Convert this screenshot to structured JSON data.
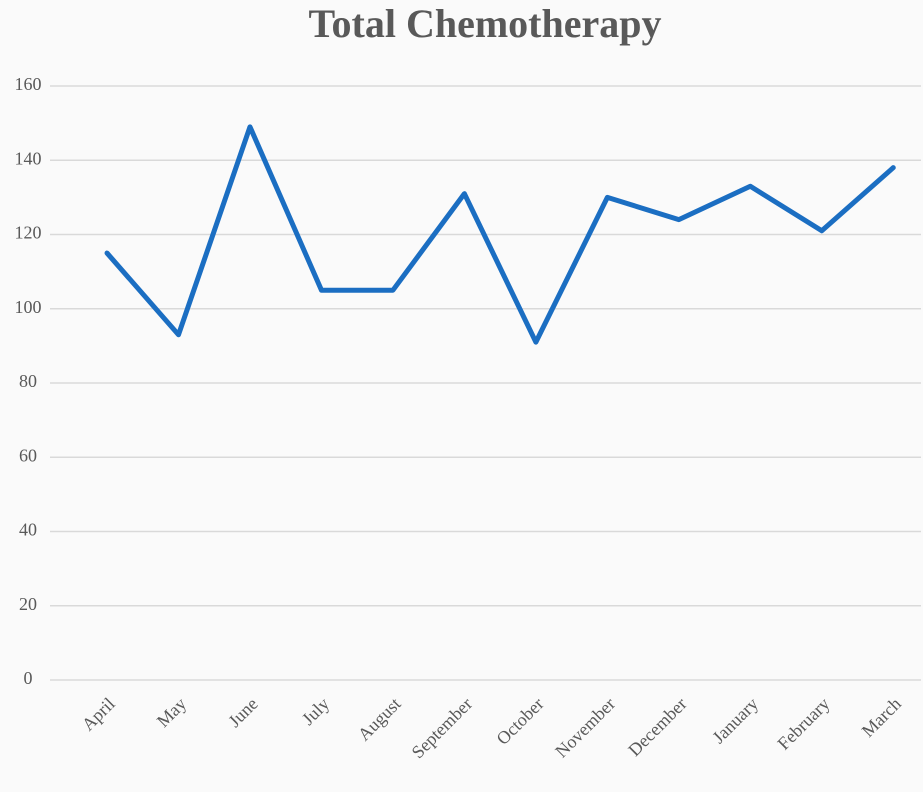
{
  "chart_data": {
    "type": "line",
    "title": "Total Chemotherapy",
    "categories": [
      "April",
      "May",
      "June",
      "July",
      "August",
      "September",
      "October",
      "November",
      "December",
      "January",
      "February",
      "March"
    ],
    "series": [
      {
        "name": "Total Chemotherapy",
        "color": "#1b6ec2",
        "values": [
          115,
          93,
          149,
          105,
          105,
          131,
          91,
          130,
          124,
          133,
          121,
          138
        ]
      }
    ],
    "ylim": [
      0,
      160
    ],
    "yticks": [
      0,
      20,
      40,
      60,
      80,
      100,
      120,
      140,
      160
    ],
    "grid": true
  }
}
